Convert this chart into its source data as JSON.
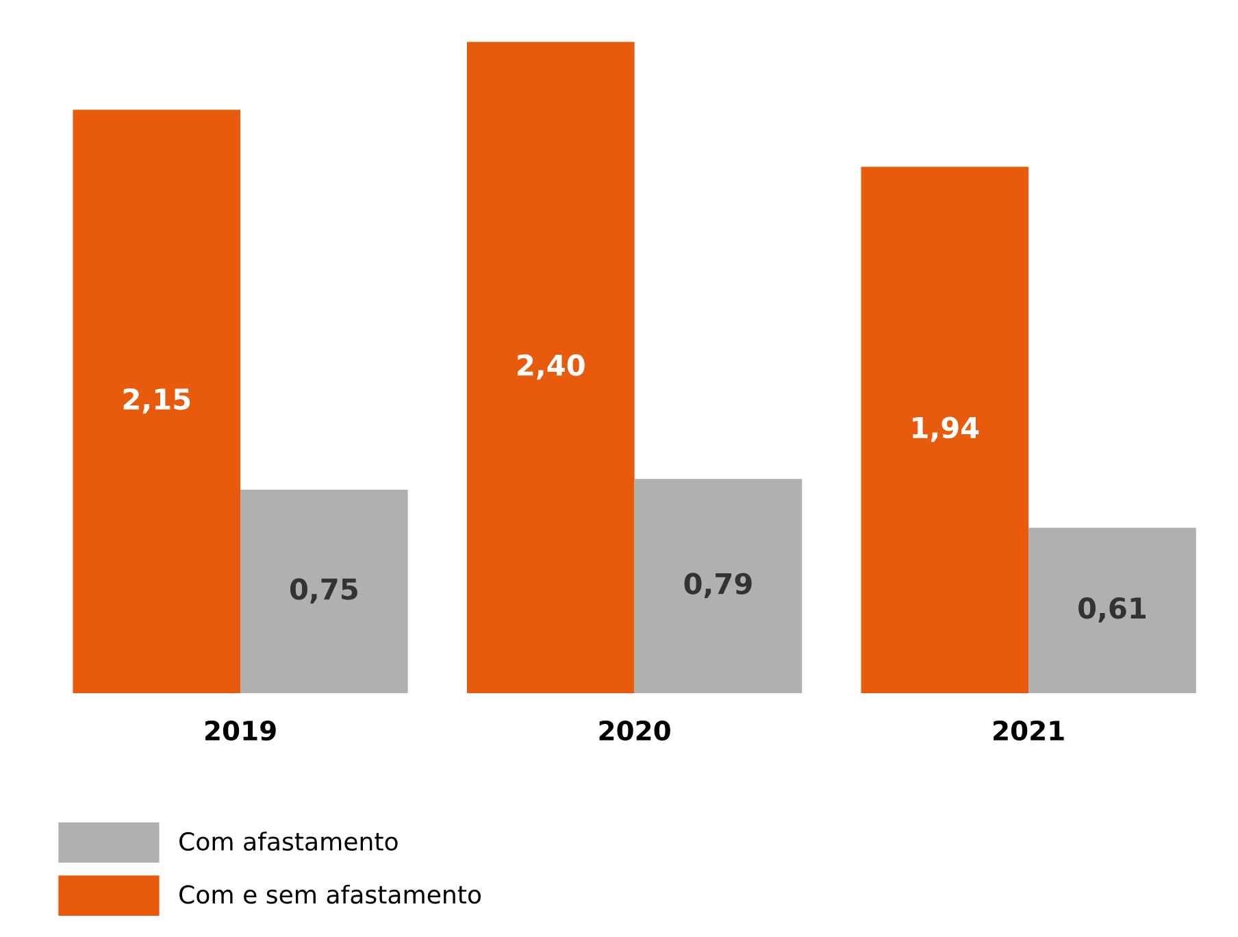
{
  "chart_data": {
    "type": "bar",
    "categories": [
      "2019",
      "2020",
      "2021"
    ],
    "series": [
      {
        "name": "Com e sem afastamento",
        "color": "#e95b0c",
        "values": [
          2.15,
          2.4,
          1.94
        ],
        "value_labels": [
          "2,15",
          "2,40",
          "1,94"
        ]
      },
      {
        "name": "Com afastamento",
        "color": "#b0b0b1",
        "values": [
          0.75,
          0.79,
          0.61
        ],
        "value_labels": [
          "0,75",
          "0,79",
          "0,61"
        ]
      }
    ],
    "legend": "bottom",
    "grid": false
  }
}
